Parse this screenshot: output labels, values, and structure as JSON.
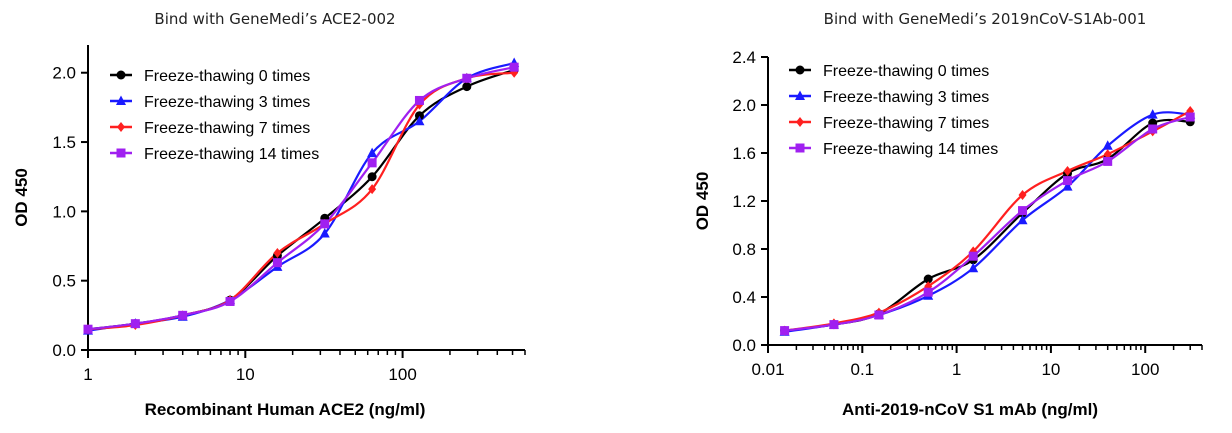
{
  "chart_data": [
    {
      "type": "scatter",
      "title": "Bind with GeneMedi’s ACE2-002",
      "xlabel": "Recombinant Human ACE2 (ng/ml)",
      "ylabel": "OD 450",
      "xscale": "log",
      "xlim": [
        1,
        600
      ],
      "ylim": [
        0,
        2.2
      ],
      "xticks": [
        1,
        10,
        100
      ],
      "xtick_labels": [
        "1",
        "10",
        "100"
      ],
      "yticks": [
        0,
        0.5,
        1.0,
        1.5,
        2.0
      ],
      "ytick_labels": [
        "0.0",
        "0.5",
        "1.0",
        "1.5",
        "2.0"
      ],
      "legend_position": "top-left",
      "x": [
        1,
        2,
        4,
        8,
        16,
        32,
        64,
        128,
        256,
        512
      ],
      "series": [
        {
          "name": "Freeze-thawing 0 times",
          "color": "#000000",
          "marker": "circle",
          "values": [
            0.15,
            0.19,
            0.25,
            0.36,
            0.68,
            0.95,
            1.25,
            1.69,
            1.9,
            2.02
          ]
        },
        {
          "name": "Freeze-thawing 3 times",
          "color": "#1a1aff",
          "marker": "triangle",
          "values": [
            0.14,
            0.19,
            0.24,
            0.36,
            0.6,
            0.84,
            1.42,
            1.65,
            1.96,
            2.07
          ]
        },
        {
          "name": "Freeze-thawing 7 times",
          "color": "#ff2020",
          "marker": "diamond",
          "values": [
            0.15,
            0.18,
            0.25,
            0.36,
            0.7,
            0.91,
            1.16,
            1.77,
            1.96,
            2.0
          ]
        },
        {
          "name": "Freeze-thawing 14 times",
          "color": "#a020f0",
          "marker": "square",
          "values": [
            0.15,
            0.19,
            0.25,
            0.35,
            0.63,
            0.91,
            1.35,
            1.8,
            1.96,
            2.04
          ]
        }
      ]
    },
    {
      "type": "scatter",
      "title": "Bind with GeneMedi’s 2019nCoV-S1Ab-001",
      "xlabel": "Anti-2019-nCoV S1 mAb (ng/ml)",
      "ylabel": "OD 450",
      "xscale": "log",
      "xlim": [
        0.01,
        400
      ],
      "ylim": [
        0,
        2.4
      ],
      "xticks": [
        0.01,
        0.1,
        1,
        10,
        100
      ],
      "xtick_labels": [
        "0.01",
        "0.1",
        "1",
        "10",
        "100"
      ],
      "yticks": [
        0,
        0.4,
        0.8,
        1.2,
        1.6,
        2.0,
        2.4
      ],
      "ytick_labels": [
        "0.0",
        "0.4",
        "0.8",
        "1.2",
        "1.6",
        "2.0",
        "2.4"
      ],
      "legend_position": "top-left",
      "x": [
        0.015,
        0.05,
        0.15,
        0.5,
        1.5,
        5,
        15,
        40,
        120,
        300
      ],
      "series": [
        {
          "name": "Freeze-thawing 0 times",
          "color": "#000000",
          "marker": "circle",
          "values": [
            0.12,
            0.17,
            0.26,
            0.55,
            0.71,
            1.1,
            1.43,
            1.55,
            1.85,
            1.86
          ]
        },
        {
          "name": "Freeze-thawing 3 times",
          "color": "#1a1aff",
          "marker": "triangle",
          "values": [
            0.11,
            0.17,
            0.25,
            0.41,
            0.64,
            1.04,
            1.32,
            1.66,
            1.92,
            1.92
          ]
        },
        {
          "name": "Freeze-thawing 7 times",
          "color": "#ff2020",
          "marker": "diamond",
          "values": [
            0.12,
            0.18,
            0.27,
            0.49,
            0.78,
            1.25,
            1.45,
            1.59,
            1.78,
            1.95
          ]
        },
        {
          "name": "Freeze-thawing 14 times",
          "color": "#a020f0",
          "marker": "square",
          "values": [
            0.12,
            0.17,
            0.25,
            0.44,
            0.74,
            1.12,
            1.37,
            1.53,
            1.8,
            1.9
          ]
        }
      ]
    }
  ]
}
